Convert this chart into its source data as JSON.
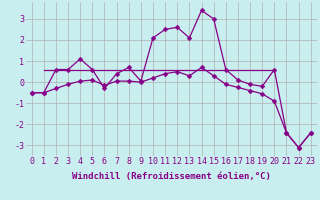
{
  "xlabel": "Windchill (Refroidissement éolien,°C)",
  "background_color": "#c8eef0",
  "grid_color": "#b0b0b0",
  "line_color": "#880088",
  "x_values": [
    0,
    1,
    2,
    3,
    4,
    5,
    6,
    7,
    8,
    9,
    10,
    11,
    12,
    13,
    14,
    15,
    16,
    17,
    18,
    19,
    20,
    21,
    22,
    23
  ],
  "series1": [
    -0.5,
    -0.5,
    0.6,
    0.6,
    1.1,
    0.6,
    -0.3,
    0.4,
    0.7,
    0.05,
    2.1,
    2.5,
    2.6,
    2.1,
    3.4,
    3.0,
    0.6,
    0.1,
    -0.1,
    -0.2,
    0.6,
    -2.4,
    -3.1,
    -2.4
  ],
  "series2_start": 0.6,
  "series2_end": 0.6,
  "series2_x_start": 1,
  "series2_x_end": 20,
  "series3": [
    -0.5,
    -0.5,
    -0.3,
    -0.1,
    0.05,
    0.1,
    -0.15,
    0.05,
    0.05,
    0.0,
    0.2,
    0.4,
    0.5,
    0.3,
    0.7,
    0.3,
    -0.1,
    -0.25,
    -0.4,
    -0.55,
    -0.9,
    -2.4,
    -3.1,
    -2.4
  ],
  "ylim": [
    -3.5,
    3.8
  ],
  "yticks": [
    -3,
    -2,
    -1,
    0,
    1,
    2,
    3
  ],
  "xticks": [
    0,
    1,
    2,
    3,
    4,
    5,
    6,
    7,
    8,
    9,
    10,
    11,
    12,
    13,
    14,
    15,
    16,
    17,
    18,
    19,
    20,
    21,
    22,
    23
  ],
  "xlabel_fontsize": 6.5,
  "tick_fontsize": 6,
  "marker_size": 2.5,
  "lw": 0.9
}
